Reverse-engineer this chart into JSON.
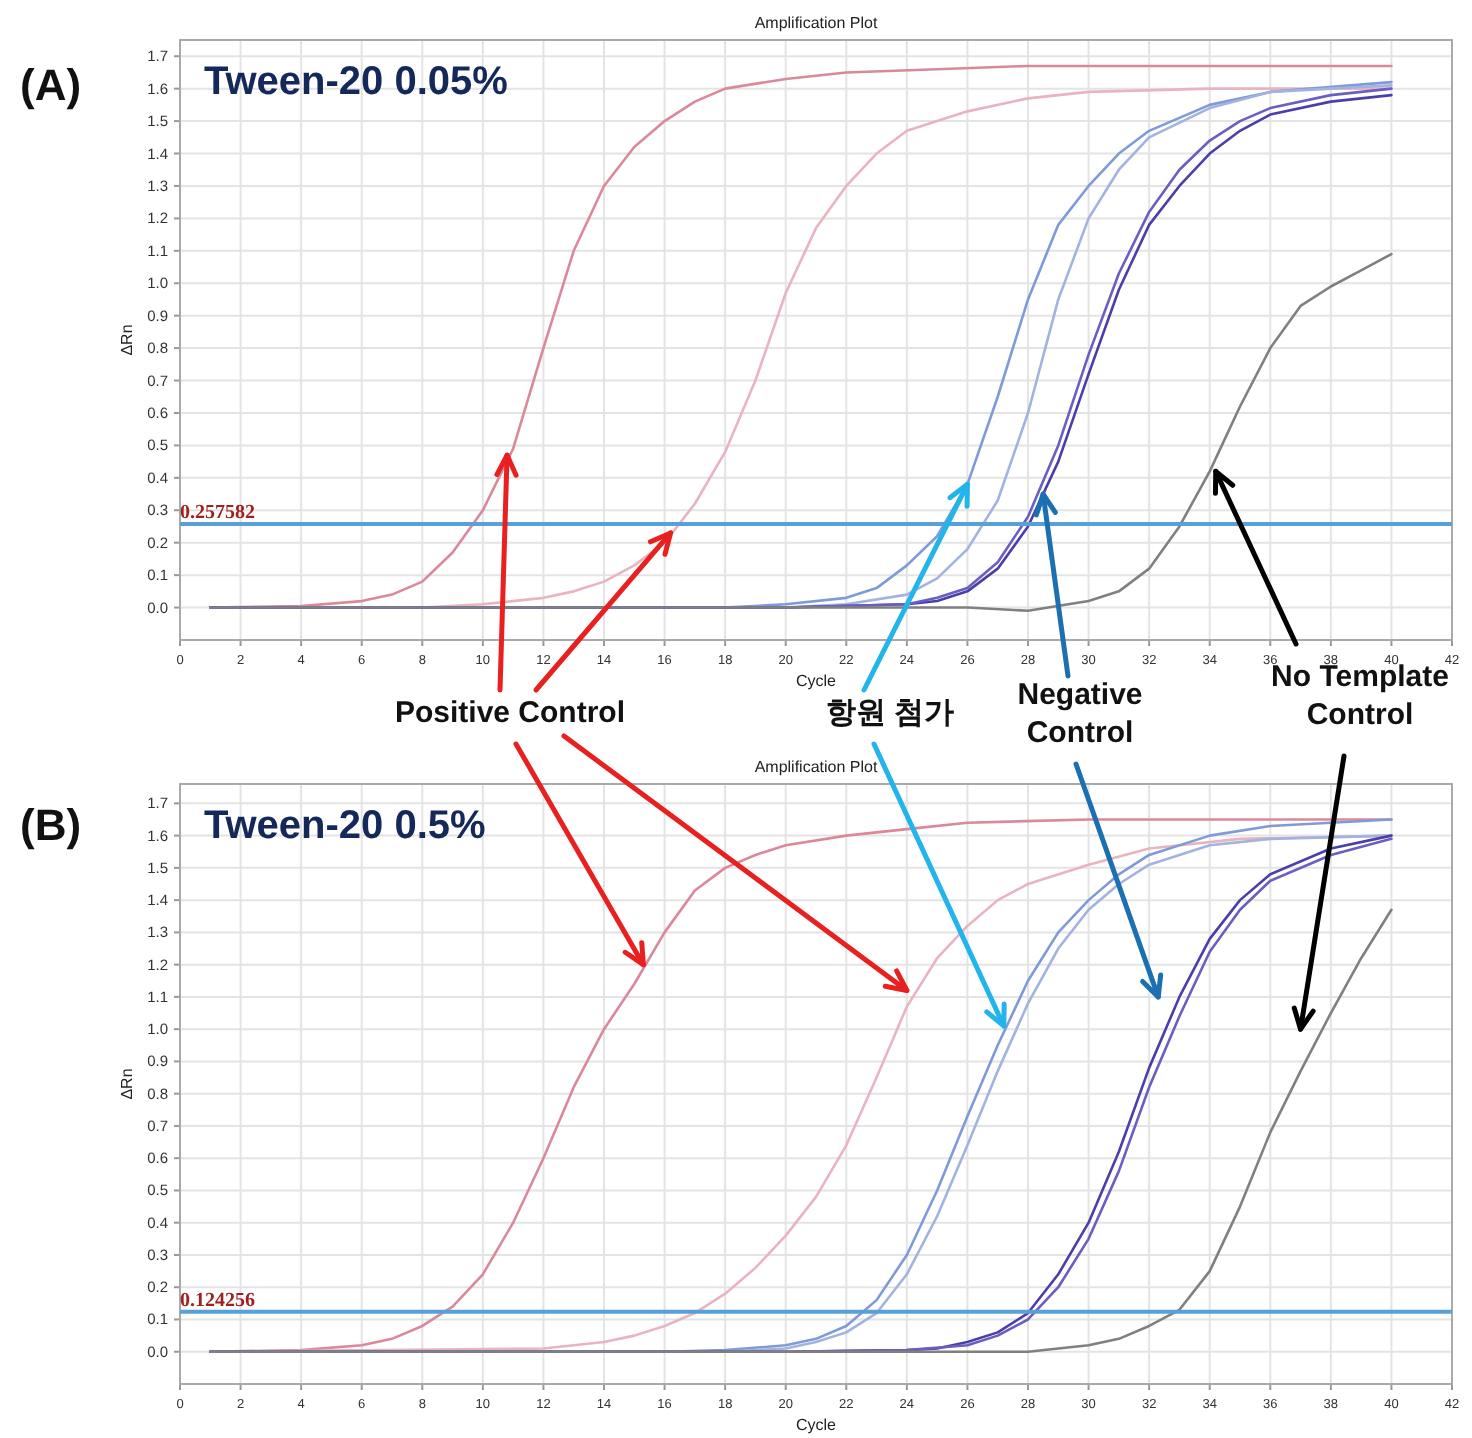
{
  "chart_data": [
    {
      "type": "line",
      "title": "Amplification Plot",
      "subtitle": "Tween-20 0.05%",
      "xlabel": "Cycle",
      "ylabel": "ΔRn",
      "grid": true,
      "annotations": [
        "(A)",
        {
          "text": "Positive Control",
          "x": 10.8,
          "y": 0.47
        },
        {
          "text": "항원 첨가",
          "x": 26,
          "y": 0.38
        },
        {
          "text": "Negative Control",
          "x": 28.5,
          "y": 0.35
        },
        {
          "text": "No Template Control",
          "x": 34.2,
          "y": 0.42
        }
      ],
      "xlim": [
        0,
        42
      ],
      "ylim": [
        -0.1,
        1.75
      ],
      "xticks": [
        0,
        2,
        4,
        6,
        8,
        10,
        12,
        14,
        16,
        18,
        20,
        22,
        24,
        26,
        28,
        30,
        32,
        34,
        36,
        38,
        40,
        42
      ],
      "yticks": [
        {
          "value": 0,
          "label": "0.0"
        },
        {
          "value": 0.1,
          "label": "0.1"
        },
        {
          "value": 0.2,
          "label": "0.2"
        },
        {
          "value": 0.3,
          "label": "0.3"
        },
        {
          "value": 0.4,
          "label": "0.4"
        },
        {
          "value": 0.5,
          "label": "0.5"
        },
        {
          "value": 0.6,
          "label": "0.6"
        },
        {
          "value": 0.7,
          "label": "0.7"
        },
        {
          "value": 0.8,
          "label": "0.8"
        },
        {
          "value": 0.9,
          "label": "0.9"
        },
        {
          "value": 1,
          "label": "1.0"
        },
        {
          "value": 1.1,
          "label": "1.1"
        },
        {
          "value": 1.2,
          "label": "1.2"
        },
        {
          "value": 1.3,
          "label": "1.3"
        },
        {
          "value": 1.4,
          "label": "1.4"
        },
        {
          "value": 1.5,
          "label": "1.5"
        },
        {
          "value": 1.6,
          "label": "1.6"
        },
        {
          "value": 1.7,
          "label": "1.7"
        }
      ],
      "ref_lines": [
        {
          "axis": "y",
          "value": 0.257582,
          "label": "0.257582",
          "color": "#5aa0d8"
        }
      ],
      "series": [
        {
          "color": "#d9899a",
          "x": [
            1,
            4,
            6,
            7,
            8,
            9,
            10,
            11,
            12,
            13,
            14,
            15,
            16,
            17,
            18,
            20,
            22,
            25,
            28,
            32,
            36,
            40
          ],
          "values": [
            0,
            0.005,
            0.02,
            0.04,
            0.08,
            0.17,
            0.3,
            0.49,
            0.8,
            1.1,
            1.3,
            1.42,
            1.5,
            1.56,
            1.6,
            1.63,
            1.65,
            1.66,
            1.67,
            1.67,
            1.67,
            1.67
          ]
        },
        {
          "color": "#e8b4c0",
          "x": [
            1,
            8,
            10,
            12,
            13,
            14,
            15,
            16,
            17,
            18,
            19,
            20,
            21,
            22,
            23,
            24,
            26,
            28,
            30,
            34,
            40
          ],
          "values": [
            0,
            0,
            0.01,
            0.03,
            0.05,
            0.08,
            0.13,
            0.2,
            0.32,
            0.48,
            0.7,
            0.97,
            1.17,
            1.3,
            1.4,
            1.47,
            1.53,
            1.57,
            1.59,
            1.6,
            1.6
          ]
        },
        {
          "color": "#7f9ad8",
          "x": [
            1,
            18,
            20,
            22,
            23,
            24,
            25,
            26,
            27,
            28,
            29,
            30,
            31,
            32,
            34,
            36,
            40
          ],
          "values": [
            0,
            0,
            0.01,
            0.03,
            0.06,
            0.13,
            0.22,
            0.38,
            0.65,
            0.95,
            1.18,
            1.3,
            1.4,
            1.47,
            1.55,
            1.59,
            1.62
          ]
        },
        {
          "color": "#a3b3e0",
          "x": [
            1,
            20,
            22,
            24,
            25,
            26,
            27,
            28,
            29,
            30,
            31,
            32,
            34,
            36,
            40
          ],
          "values": [
            0,
            0,
            0.01,
            0.04,
            0.09,
            0.18,
            0.33,
            0.6,
            0.95,
            1.2,
            1.35,
            1.45,
            1.54,
            1.59,
            1.61
          ]
        },
        {
          "color": "#4a3fa8",
          "x": [
            1,
            20,
            24,
            25,
            26,
            27,
            28,
            29,
            30,
            31,
            32,
            33,
            34,
            35,
            36,
            38,
            40
          ],
          "values": [
            0,
            0,
            0.01,
            0.02,
            0.05,
            0.12,
            0.25,
            0.45,
            0.72,
            0.98,
            1.18,
            1.3,
            1.4,
            1.47,
            1.52,
            1.56,
            1.58
          ]
        },
        {
          "color": "#6a5fc0",
          "x": [
            1,
            20,
            24,
            25,
            26,
            27,
            28,
            29,
            30,
            31,
            32,
            33,
            34,
            35,
            36,
            38,
            40
          ],
          "values": [
            0,
            0,
            0.01,
            0.03,
            0.06,
            0.14,
            0.28,
            0.5,
            0.78,
            1.03,
            1.22,
            1.35,
            1.44,
            1.5,
            1.54,
            1.58,
            1.6
          ]
        },
        {
          "color": "#808080",
          "x": [
            1,
            26,
            28,
            30,
            31,
            32,
            33,
            34,
            35,
            36,
            37,
            38,
            39,
            40
          ],
          "values": [
            0,
            0,
            -0.01,
            0.02,
            0.05,
            0.12,
            0.25,
            0.42,
            0.62,
            0.8,
            0.93,
            0.99,
            1.04,
            1.09
          ]
        }
      ]
    },
    {
      "type": "line",
      "title": "Amplification Plot",
      "subtitle": "Tween-20 0.5%",
      "xlabel": "Cycle",
      "ylabel": "ΔRn",
      "grid": true,
      "annotations": [
        "(B)"
      ],
      "xlim": [
        0,
        42
      ],
      "ylim": [
        -0.1,
        1.76
      ],
      "xticks": [
        0,
        2,
        4,
        6,
        8,
        10,
        12,
        14,
        16,
        18,
        20,
        22,
        24,
        26,
        28,
        30,
        32,
        34,
        36,
        38,
        40,
        42
      ],
      "yticks": [
        {
          "value": 0,
          "label": "0.0"
        },
        {
          "value": 0.1,
          "label": "0.1"
        },
        {
          "value": 0.2,
          "label": "0.2"
        },
        {
          "value": 0.3,
          "label": "0.3"
        },
        {
          "value": 0.4,
          "label": "0.4"
        },
        {
          "value": 0.5,
          "label": "0.5"
        },
        {
          "value": 0.6,
          "label": "0.6"
        },
        {
          "value": 0.7,
          "label": "0.7"
        },
        {
          "value": 0.8,
          "label": "0.8"
        },
        {
          "value": 0.9,
          "label": "0.9"
        },
        {
          "value": 1,
          "label": "1.0"
        },
        {
          "value": 1.1,
          "label": "1.1"
        },
        {
          "value": 1.2,
          "label": "1.2"
        },
        {
          "value": 1.3,
          "label": "1.3"
        },
        {
          "value": 1.4,
          "label": "1.4"
        },
        {
          "value": 1.5,
          "label": "1.5"
        },
        {
          "value": 1.6,
          "label": "1.6"
        },
        {
          "value": 1.7,
          "label": "1.7"
        }
      ],
      "ref_lines": [
        {
          "axis": "y",
          "value": 0.124256,
          "label": "0.124256",
          "color": "#5aa0d8"
        }
      ],
      "series": [
        {
          "color": "#d9899a",
          "x": [
            1,
            4,
            6,
            7,
            8,
            9,
            10,
            11,
            12,
            13,
            14,
            15,
            16,
            17,
            18,
            19,
            20,
            22,
            24,
            26,
            30,
            35,
            40
          ],
          "values": [
            0,
            0.005,
            0.02,
            0.04,
            0.08,
            0.14,
            0.24,
            0.4,
            0.6,
            0.82,
            1,
            1.14,
            1.3,
            1.43,
            1.5,
            1.54,
            1.57,
            1.6,
            1.62,
            1.64,
            1.65,
            1.65,
            1.65
          ]
        },
        {
          "color": "#e8b4c0",
          "x": [
            1,
            12,
            14,
            15,
            16,
            17,
            18,
            19,
            20,
            21,
            22,
            23,
            24,
            25,
            26,
            27,
            28,
            30,
            32,
            35,
            40
          ],
          "values": [
            0,
            0.01,
            0.03,
            0.05,
            0.08,
            0.12,
            0.18,
            0.26,
            0.36,
            0.48,
            0.64,
            0.85,
            1.07,
            1.22,
            1.32,
            1.4,
            1.45,
            1.51,
            1.56,
            1.59,
            1.6
          ]
        },
        {
          "color": "#7f9ad8",
          "x": [
            1,
            16,
            18,
            20,
            21,
            22,
            23,
            24,
            25,
            26,
            27,
            28,
            29,
            30,
            31,
            32,
            34,
            36,
            40
          ],
          "values": [
            0,
            0,
            0.005,
            0.02,
            0.04,
            0.08,
            0.16,
            0.3,
            0.5,
            0.73,
            0.95,
            1.15,
            1.3,
            1.4,
            1.48,
            1.54,
            1.6,
            1.63,
            1.65
          ]
        },
        {
          "color": "#a3b3e0",
          "x": [
            1,
            18,
            20,
            21,
            22,
            23,
            24,
            25,
            26,
            27,
            28,
            29,
            30,
            31,
            32,
            34,
            36,
            40
          ],
          "values": [
            0,
            0,
            0.01,
            0.03,
            0.06,
            0.12,
            0.24,
            0.42,
            0.64,
            0.87,
            1.08,
            1.25,
            1.37,
            1.45,
            1.51,
            1.57,
            1.59,
            1.6
          ]
        },
        {
          "color": "#4a3fa8",
          "x": [
            1,
            20,
            24,
            25,
            26,
            27,
            28,
            29,
            30,
            31,
            32,
            33,
            34,
            35,
            36,
            38,
            40
          ],
          "values": [
            0,
            0,
            0.005,
            0.01,
            0.03,
            0.06,
            0.12,
            0.24,
            0.4,
            0.62,
            0.88,
            1.1,
            1.28,
            1.4,
            1.48,
            1.56,
            1.6
          ]
        },
        {
          "color": "#6a5fc0",
          "x": [
            1,
            20,
            24,
            26,
            27,
            28,
            29,
            30,
            31,
            32,
            33,
            34,
            35,
            36,
            38,
            40
          ],
          "values": [
            0,
            0,
            0.005,
            0.02,
            0.05,
            0.1,
            0.2,
            0.35,
            0.56,
            0.82,
            1.04,
            1.24,
            1.37,
            1.46,
            1.54,
            1.59
          ]
        },
        {
          "color": "#808080",
          "x": [
            1,
            28,
            29,
            30,
            31,
            32,
            33,
            34,
            35,
            36,
            37,
            38,
            39,
            40
          ],
          "values": [
            0,
            0,
            0.01,
            0.02,
            0.04,
            0.08,
            0.13,
            0.25,
            0.45,
            0.68,
            0.87,
            1.05,
            1.22,
            1.37
          ]
        }
      ]
    }
  ]
}
